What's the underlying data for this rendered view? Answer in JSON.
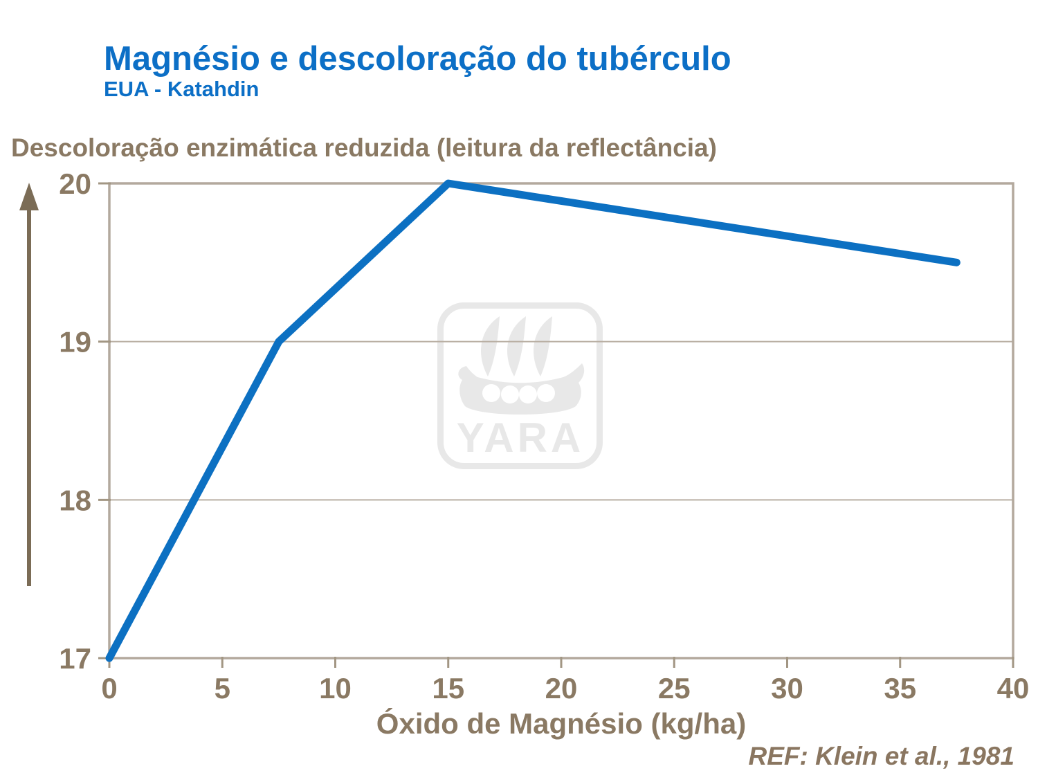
{
  "header": {
    "title": "Magnésio e descoloração do tubérculo",
    "subtitle": "EUA - Katahdin"
  },
  "watermark": {
    "label": "YARA"
  },
  "footer": {
    "reference": "REF: Klein et al., 1981"
  },
  "chart_data": {
    "type": "line",
    "title": "Magnésio e descoloração do tubérculo",
    "subtitle": "EUA - Katahdin",
    "xlabel": "Óxido de Magnésio (kg/ha)",
    "ylabel": "Descoloração enzimática reduzida (leitura da reflectância)",
    "x": [
      0,
      7.5,
      15,
      37.5
    ],
    "y": [
      17,
      19,
      20,
      19.5
    ],
    "series": [
      {
        "name": "Descoloração enzimática reduzida (leitura da reflectância)",
        "values": [
          17,
          19,
          20,
          19.5
        ]
      }
    ],
    "xlim": [
      0,
      40
    ],
    "ylim": [
      17,
      20
    ],
    "xticks": [
      0,
      5,
      10,
      15,
      20,
      25,
      30,
      35,
      40
    ],
    "yticks": [
      17,
      18,
      19,
      20
    ],
    "grid": "horizontal-y",
    "legend": "none",
    "line_color": "#0c70c2",
    "source": "REF: Klein et al., 1981"
  },
  "colors": {
    "title_blue": "#0c6fc6",
    "line_blue": "#0c70c2",
    "text_brown": "#8a7963",
    "frame_taupe": "#b3a99d",
    "arrow_brown": "#7b6c56",
    "watermark_gray": "#e8e8e8"
  }
}
